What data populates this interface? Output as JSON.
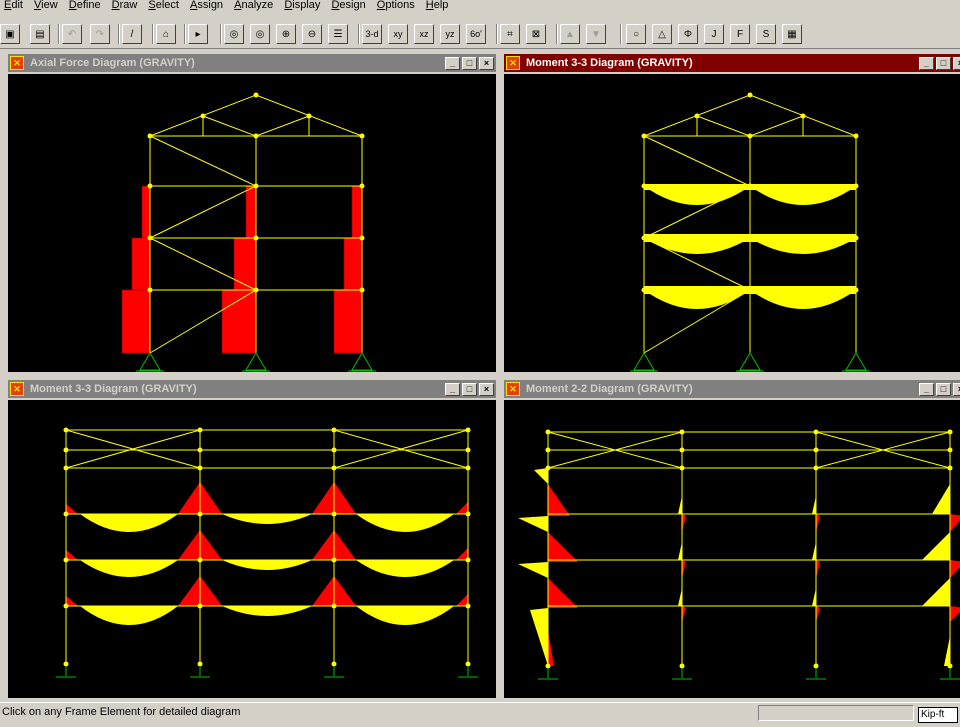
{
  "menu": [
    "Edit",
    "View",
    "Define",
    "Draw",
    "Select",
    "Assign",
    "Analyze",
    "Display",
    "Design",
    "Options",
    "Help"
  ],
  "toolbar": {
    "buttons": [
      {
        "name": "new-model-button",
        "glyph": "▣"
      },
      {
        "name": "save-button",
        "glyph": "▤"
      },
      {
        "name": "undo-button",
        "glyph": "↶"
      },
      {
        "name": "redo-button",
        "glyph": "↷"
      },
      {
        "name": "refresh-button",
        "glyph": "/"
      },
      {
        "name": "lock-button",
        "glyph": "⌂"
      },
      {
        "name": "run-analysis-button",
        "glyph": "▸"
      },
      {
        "name": "rubber-band-zoom-button",
        "glyph": "◎"
      },
      {
        "name": "restore-view-button",
        "glyph": "◎"
      },
      {
        "name": "zoom-in-button",
        "glyph": "⊕"
      },
      {
        "name": "zoom-out-button",
        "glyph": "⊖"
      },
      {
        "name": "pan-button",
        "glyph": "☰"
      },
      {
        "name": "view-3d-button",
        "glyph": "3-d"
      },
      {
        "name": "view-xy-button",
        "glyph": "xy"
      },
      {
        "name": "view-xz-button",
        "glyph": "xz"
      },
      {
        "name": "view-yz-button",
        "glyph": "yz"
      },
      {
        "name": "perspective-button",
        "glyph": "6o'"
      },
      {
        "name": "object-shrink-button",
        "glyph": "⌗"
      },
      {
        "name": "set-elements-button",
        "glyph": "⊠"
      },
      {
        "name": "move-up-button",
        "glyph": "▲"
      },
      {
        "name": "move-down-button",
        "glyph": "▼"
      },
      {
        "name": "show-undeformed-button",
        "glyph": "○"
      },
      {
        "name": "show-loads-button",
        "glyph": "△"
      },
      {
        "name": "show-deformed-button",
        "glyph": "Φ"
      },
      {
        "name": "show-joint-button",
        "glyph": "J"
      },
      {
        "name": "show-frame-forces-button",
        "glyph": "F"
      },
      {
        "name": "show-shell-stresses-button",
        "glyph": "S"
      },
      {
        "name": "show-tables-button",
        "glyph": "▦"
      }
    ]
  },
  "windows": [
    {
      "title": "Axial Force Diagram   (GRAVITY)",
      "state": "inactive",
      "controls": [
        "_",
        "□",
        "×"
      ]
    },
    {
      "title": "Moment 3-3 Diagram   (GRAVITY)",
      "state": "active",
      "controls": [
        "_",
        "□",
        "×"
      ]
    },
    {
      "title": "Moment 3-3 Diagram   (GRAVITY)",
      "state": "inactive",
      "controls": [
        "_",
        "□",
        "×"
      ]
    },
    {
      "title": "Moment 2-2 Diagram   (GRAVITY)",
      "state": "inactive",
      "controls": [
        "_",
        "□",
        "×"
      ]
    }
  ],
  "colors": {
    "frame": "#ffff00",
    "diagram_positive": "#ffff00",
    "diagram_negative": "#ff0000",
    "support": "#00c000",
    "canvas": "#000000",
    "active_title": "#800000",
    "inactive_title": "#808080"
  },
  "status": {
    "message": "Click on any Frame Element for detailed diagram",
    "units": "Kip-ft"
  }
}
